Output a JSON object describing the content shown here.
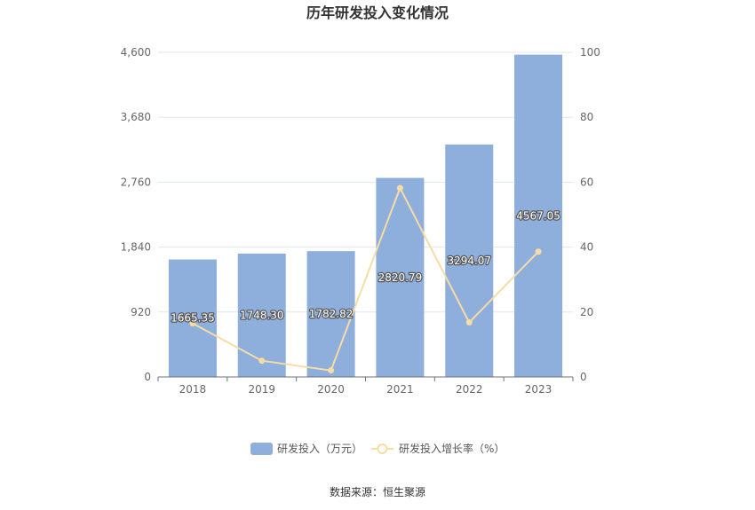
{
  "chart_data": {
    "type": "bar",
    "title": "历年研发投入变化情况",
    "categories": [
      "2018",
      "2019",
      "2020",
      "2021",
      "2022",
      "2023"
    ],
    "series": [
      {
        "name": "研发投入（万元）",
        "type": "bar",
        "axis": "left",
        "color": "#8eaedb",
        "values": [
          1665.35,
          1748.3,
          1782.82,
          2820.79,
          3294.07,
          4567.05
        ],
        "labels": [
          "1665.35",
          "1748.30",
          "1782.82",
          "2820.79",
          "3294.07",
          "4567.05"
        ]
      },
      {
        "name": "研发投入增长率（%）",
        "type": "line",
        "axis": "right",
        "color": "#f8dca6",
        "values": [
          16.5,
          5.0,
          2.0,
          58.2,
          16.8,
          38.6
        ]
      }
    ],
    "y_left": {
      "min": 0,
      "max": 4600,
      "ticks": [
        "0",
        "920",
        "1,840",
        "2,760",
        "3,680",
        "4,600"
      ],
      "tick_values": [
        0,
        920,
        1840,
        2760,
        3680,
        4600
      ]
    },
    "y_right": {
      "min": 0,
      "max": 100,
      "ticks": [
        "0",
        "20",
        "40",
        "60",
        "80",
        "100"
      ],
      "tick_values": [
        0,
        20,
        40,
        60,
        80,
        100
      ]
    },
    "grid": true,
    "legend_position": "bottom-center",
    "source": "数据来源：恒生聚源"
  }
}
